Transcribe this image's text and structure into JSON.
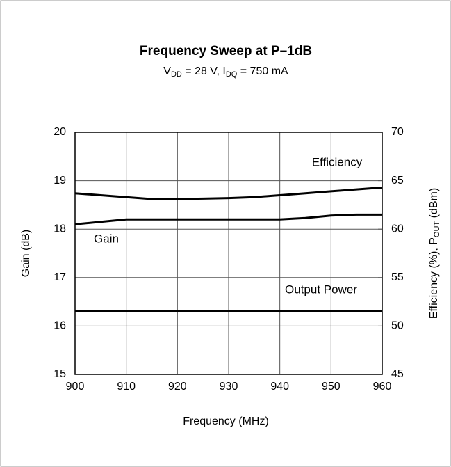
{
  "chart_data": {
    "type": "line",
    "title": "Frequency Sweep at P–1dB",
    "subtitle": [
      {
        "text": "V"
      },
      {
        "text": "DD",
        "sub": true
      },
      {
        "text": " = 28 V, I"
      },
      {
        "text": "DQ",
        "sub": true
      },
      {
        "text": " = 750 mA"
      }
    ],
    "xlabel": "Frequency (MHz)",
    "ylabel": "Gain (dB)",
    "y2label": [
      {
        "text": "Efficiency (%), P"
      },
      {
        "text": "OUT",
        "sub": true
      },
      {
        "text": " (dBm)"
      }
    ],
    "x": [
      900,
      905,
      910,
      915,
      920,
      925,
      930,
      935,
      940,
      945,
      950,
      955,
      960
    ],
    "series": [
      {
        "name": "Efficiency",
        "color": "#000000",
        "axis": "y2",
        "values": [
          63.7,
          63.5,
          63.3,
          63.1,
          63.1,
          63.15,
          63.2,
          63.3,
          63.5,
          63.7,
          63.9,
          64.1,
          64.3
        ]
      },
      {
        "name": "Gain",
        "color": "#000000",
        "values": [
          18.1,
          18.15,
          18.2,
          18.2,
          18.2,
          18.2,
          18.2,
          18.2,
          18.2,
          18.23,
          18.28,
          18.3,
          18.3
        ]
      },
      {
        "name": "Output Power",
        "color": "#000000",
        "axis": "y2",
        "values": [
          51.5,
          51.5,
          51.5,
          51.5,
          51.5,
          51.5,
          51.5,
          51.5,
          51.5,
          51.5,
          51.5,
          51.5,
          51.5
        ]
      }
    ],
    "xlim": [
      900,
      960
    ],
    "xticks": [
      900,
      910,
      920,
      930,
      940,
      950,
      960
    ],
    "ylim": [
      15,
      20
    ],
    "yticks": [
      15,
      16,
      17,
      18,
      19,
      20
    ],
    "y2lim": [
      45,
      70
    ],
    "y2ticks": [
      45,
      50,
      55,
      60,
      65,
      70
    ],
    "grid": true
  }
}
